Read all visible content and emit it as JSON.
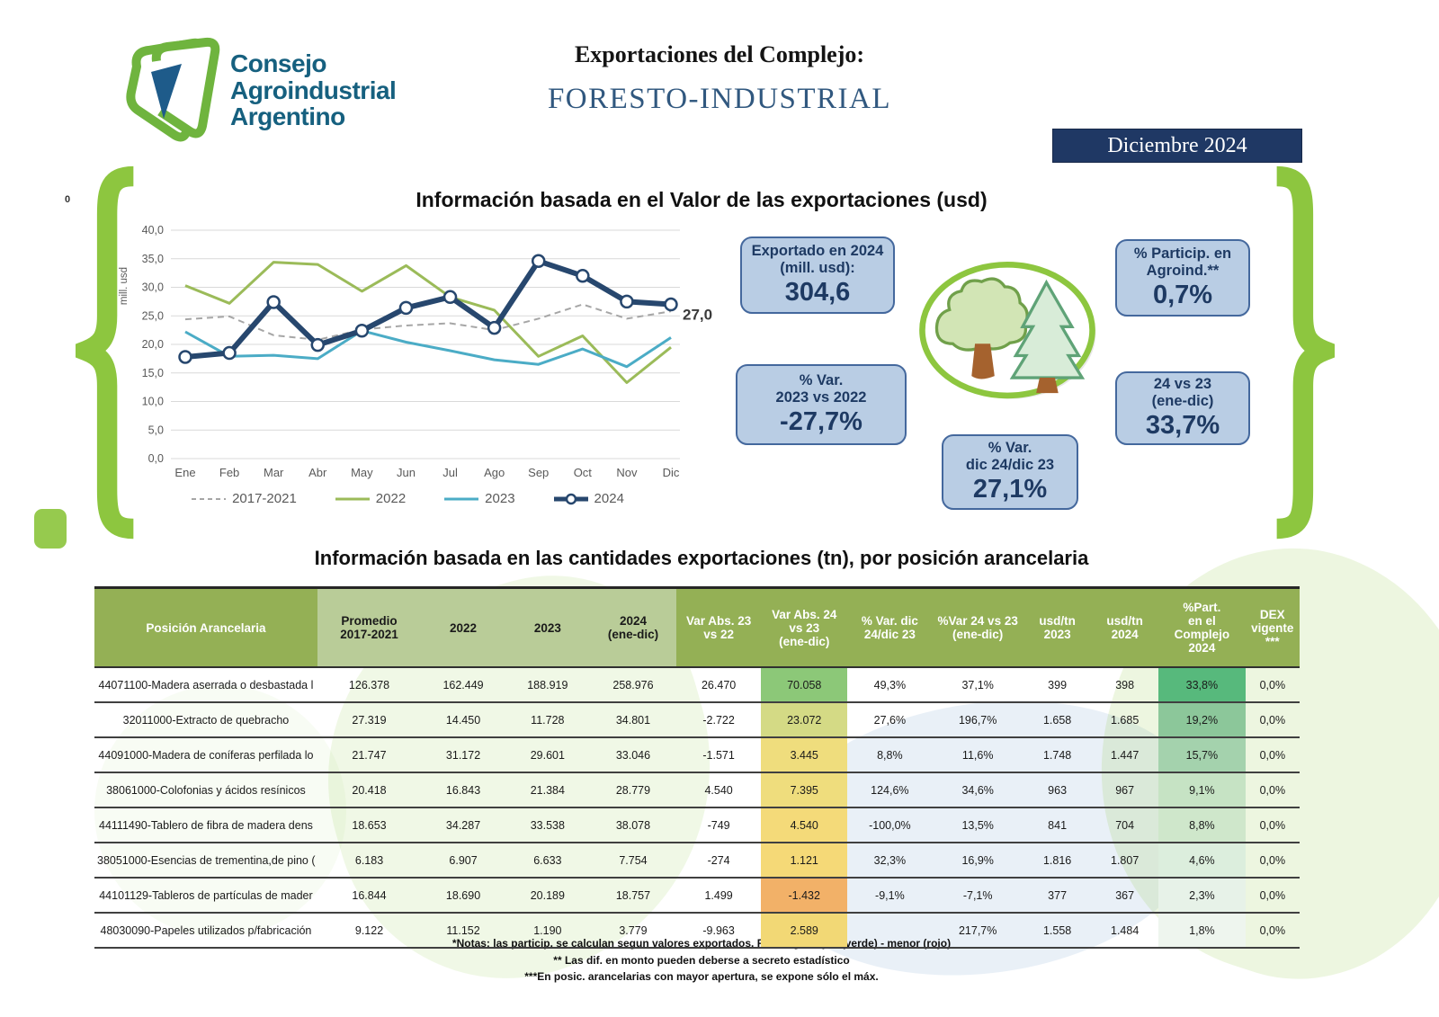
{
  "header": {
    "logo_line1": "Consejo",
    "logo_line2": "Agroindustrial",
    "logo_line3": "Argentino",
    "title_prefix": "Exportaciones del Complejo:",
    "title_main": "FORESTO-INDUSTRIAL",
    "period_badge": "Diciembre 2024",
    "stray_zero": "0"
  },
  "colors": {
    "accent_green": "#8dc63f",
    "navy": "#1f3864",
    "box_fill": "#b9cde4",
    "box_border": "#44689d",
    "header_dark_green": "#94b055",
    "header_light_green": "#b9cc98"
  },
  "chart_data": {
    "type": "line",
    "title": "Información basada en el Valor de las exportaciones (usd)",
    "ylabel": "mill. usd",
    "ylim": [
      0,
      40
    ],
    "ytick_step": 5,
    "grid": true,
    "legend_position": "bottom",
    "categories": [
      "Ene",
      "Feb",
      "Mar",
      "Abr",
      "May",
      "Jun",
      "Jul",
      "Ago",
      "Sep",
      "Oct",
      "Nov",
      "Dic"
    ],
    "series": [
      {
        "name": "2017-2021",
        "color": "#a6a6a6",
        "style": "dashed",
        "width": 2,
        "values": [
          24.4,
          24.9,
          21.6,
          20.8,
          22.6,
          23.3,
          23.7,
          22.5,
          24.5,
          27.0,
          24.5,
          25.8
        ]
      },
      {
        "name": "2022",
        "color": "#9bbb59",
        "style": "solid",
        "width": 3,
        "values": [
          30.3,
          27.2,
          34.4,
          34.0,
          29.3,
          33.8,
          28.3,
          26.0,
          17.9,
          21.5,
          13.3,
          19.5
        ]
      },
      {
        "name": "2023",
        "color": "#4bacc6",
        "style": "solid",
        "width": 3,
        "values": [
          22.2,
          17.9,
          18.1,
          17.5,
          22.4,
          20.4,
          18.9,
          17.3,
          16.5,
          19.2,
          16.1,
          21.2
        ]
      },
      {
        "name": "2024",
        "color": "#27476e",
        "style": "solid",
        "width": 6,
        "markers": true,
        "end_label": "27,0",
        "values": [
          17.8,
          18.5,
          27.4,
          19.9,
          22.4,
          26.4,
          28.3,
          22.9,
          34.6,
          32.0,
          27.5,
          27.0
        ]
      }
    ]
  },
  "stats": {
    "exported": {
      "label": "Exportado en 2024\n(mill. usd):",
      "value": "304,6"
    },
    "var_2023_2022": {
      "label": "% Var.\n2023 vs 2022",
      "value": "-27,7%"
    },
    "particip": {
      "label": "% Particip. en\nAgroind.**",
      "value": "0,7%"
    },
    "var_24_23": {
      "label": "24 vs 23\n(ene-dic)",
      "value": "33,7%"
    },
    "var_dic": {
      "label": "% Var.\ndic 24/dic 23",
      "value": "27,1%"
    }
  },
  "table": {
    "title": "Información basada en las cantidades exportaciones (tn), por posición arancelaria",
    "columns": [
      {
        "label": "Posición Arancelaria"
      },
      {
        "label": "Promedio\n2017-2021"
      },
      {
        "label": "2022"
      },
      {
        "label": "2023"
      },
      {
        "label": "2024\n(ene-dic)"
      },
      {
        "label": "Var Abs. 23\nvs 22"
      },
      {
        "label": "Var Abs. 24\nvs 23\n(ene-dic)"
      },
      {
        "label": "% Var. dic\n24/dic 23"
      },
      {
        "label": "%Var 24 vs 23\n(ene-dic)"
      },
      {
        "label": "usd/tn\n2023"
      },
      {
        "label": "usd/tn\n2024"
      },
      {
        "label": "%Part.\nen el\nComplejo\n2024"
      },
      {
        "label": "DEX\nvigente\n***"
      }
    ],
    "rows": [
      {
        "position": "44071100-Madera aserrada o desbastada l",
        "values": [
          "126.378",
          "162.449",
          "188.919",
          "258.976",
          "26.470",
          "70.058",
          "49,3%",
          "37,1%",
          "399",
          "398",
          "33,8%",
          "0,0%"
        ],
        "var24_bg": "#8cc878",
        "part_bg": "#57b97c"
      },
      {
        "position": "32011000-Extracto de quebracho",
        "values": [
          "27.319",
          "14.450",
          "11.728",
          "34.801",
          "-2.722",
          "23.072",
          "27,6%",
          "196,7%",
          "1.658",
          "1.685",
          "19,2%",
          "0,0%"
        ],
        "var24_bg": "#d4da85",
        "part_bg": "#8cc79a"
      },
      {
        "position": "44091000-Madera de coníferas perfilada lo",
        "values": [
          "21.747",
          "31.172",
          "29.601",
          "33.046",
          "-1.571",
          "3.445",
          "8,8%",
          "11,6%",
          "1.748",
          "1.447",
          "15,7%",
          "0,0%"
        ],
        "var24_bg": "#efdd7d",
        "part_bg": "#a4d2ad"
      },
      {
        "position": "38061000-Colofonias y ácidos resínicos",
        "values": [
          "20.418",
          "16.843",
          "21.384",
          "28.779",
          "4.540",
          "7.395",
          "124,6%",
          "34,6%",
          "963",
          "967",
          "9,1%",
          "0,0%"
        ],
        "var24_bg": "#efdd7d",
        "part_bg": "#c6e3c4"
      },
      {
        "position": "44111490-Tablero de fibra de madera dens",
        "values": [
          "18.653",
          "34.287",
          "33.538",
          "38.078",
          "-749",
          "4.540",
          "-100,0%",
          "13,5%",
          "841",
          "704",
          "8,8%",
          "0,0%"
        ],
        "var24_bg": "#f4da79",
        "part_bg": "#cfe7cb"
      },
      {
        "position": "38051000-Esencias de trementina,de pino (",
        "values": [
          "6.183",
          "6.907",
          "6.633",
          "7.754",
          "-274",
          "1.121",
          "32,3%",
          "16,9%",
          "1.816",
          "1.807",
          "4,6%",
          "0,0%"
        ],
        "var24_bg": "#f5d977",
        "part_bg": "#dceedd"
      },
      {
        "position": "44101129-Tableros de partículas de mader",
        "values": [
          "16.844",
          "18.690",
          "20.189",
          "18.757",
          "1.499",
          "-1.432",
          "-9,1%",
          "-7,1%",
          "377",
          "367",
          "2,3%",
          "0,0%"
        ],
        "var24_bg": "#f2b168",
        "part_bg": "#e7f2e8"
      },
      {
        "position": "48030090-Papeles utilizados p/fabricación",
        "values": [
          "9.122",
          "11.152",
          "1.190",
          "3.779",
          "-9.963",
          "2.589",
          "",
          "217,7%",
          "1.558",
          "1.484",
          "1,8%",
          "0,0%"
        ],
        "var24_bg": "#f2d875",
        "part_bg": "#eef5ee"
      }
    ],
    "notes": [
      "*Notas: las particip. se calculan segun valores exportados. Ranking: mayor (verde) - menor (rojo)",
      "** Las dif. en monto pueden deberse a secreto estadístico",
      "***En posic. arancelarias con mayor apertura, se expone sólo el máx."
    ]
  }
}
